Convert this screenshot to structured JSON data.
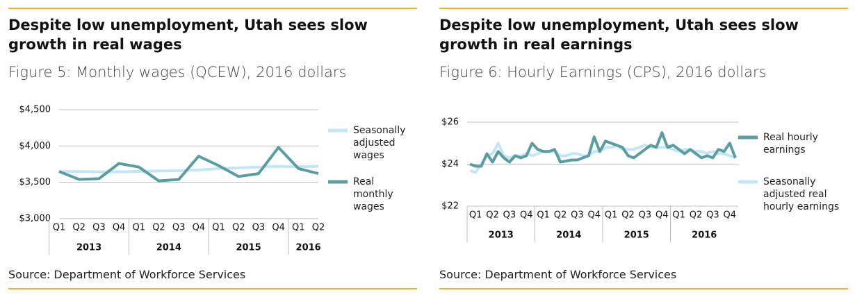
{
  "chart_data": [
    {
      "type": "line",
      "title": "Despite low unemployment, Utah sees slow growth in real wages",
      "subtitle": "Figure 5: Monthly wages (QCEW), 2016 dollars",
      "source": "Source: Department of Workforce Services",
      "categories": [
        "Q1",
        "Q2",
        "Q3",
        "Q4",
        "Q1",
        "Q2",
        "Q3",
        "Q4",
        "Q1",
        "Q2",
        "Q3",
        "Q4",
        "Q1",
        "Q2"
      ],
      "groups": [
        "2013",
        "2014",
        "2015",
        "2016"
      ],
      "ylim": [
        3000,
        4500
      ],
      "yticks": [
        {
          "value": 3000,
          "label": "$3,000"
        },
        {
          "value": 3500,
          "label": "$3,500"
        },
        {
          "value": 4000,
          "label": "$4,000"
        },
        {
          "value": 4500,
          "label": "$4,500"
        }
      ],
      "grid": true,
      "series": [
        {
          "name": "Seasonally adjusted wages",
          "color": "#c2e6f5",
          "values": [
            3650,
            3650,
            3645,
            3645,
            3650,
            3655,
            3660,
            3670,
            3690,
            3700,
            3710,
            3720,
            3715,
            3720
          ]
        },
        {
          "name": "Real monthly wages",
          "color": "#5a9da0",
          "values": [
            3650,
            3540,
            3550,
            3760,
            3710,
            3520,
            3540,
            3860,
            3730,
            3580,
            3620,
            3980,
            3690,
            3620
          ]
        }
      ]
    },
    {
      "type": "line",
      "title": "Despite low unemployment, Utah sees slow growth in real earnings",
      "subtitle": "Figure 6: Hourly Earnings (CPS), 2016 dollars",
      "source": "Source: Department of Workforce Services",
      "categories": [
        null,
        "Q1",
        null,
        null,
        "Q2",
        null,
        null,
        "Q3",
        null,
        null,
        "Q4",
        null,
        null,
        "Q1",
        null,
        null,
        "Q2",
        null,
        null,
        "Q3",
        null,
        null,
        "Q4",
        null,
        null,
        "Q1",
        null,
        null,
        "Q2",
        null,
        null,
        "Q3",
        null,
        null,
        "Q4",
        null,
        null,
        "Q1",
        null,
        null,
        "Q2",
        null,
        null,
        "Q3",
        null,
        null,
        "Q4",
        null
      ],
      "groups": [
        "2013",
        "2014",
        "2015",
        "2016"
      ],
      "ylim": [
        22,
        26
      ],
      "yticks": [
        {
          "value": 22,
          "label": "$22"
        },
        {
          "value": 24,
          "label": "$24"
        },
        {
          "value": 26,
          "label": "$26"
        }
      ],
      "grid": true,
      "series": [
        {
          "name": "Real hourly earnings",
          "color": "#5a9da0",
          "values": [
            24.0,
            23.9,
            23.9,
            24.5,
            24.1,
            24.6,
            24.3,
            24.1,
            24.4,
            24.3,
            24.4,
            25.0,
            24.7,
            24.6,
            24.6,
            24.7,
            24.1,
            24.15,
            24.2,
            24.2,
            24.3,
            24.4,
            25.3,
            24.6,
            25.1,
            25.0,
            24.9,
            24.8,
            24.4,
            24.3,
            24.5,
            24.7,
            24.9,
            24.8,
            25.5,
            24.8,
            24.9,
            24.7,
            24.5,
            24.7,
            24.5,
            24.3,
            24.4,
            24.3,
            24.7,
            24.6,
            25.0,
            24.3
          ]
        },
        {
          "name": "Seasonally adjusted real hourly earnings",
          "color": "#c2e6f5",
          "values": [
            23.7,
            23.6,
            24.0,
            24.4,
            24.5,
            25.0,
            24.4,
            24.3,
            24.4,
            24.4,
            24.5,
            24.4,
            24.5,
            24.6,
            24.6,
            24.6,
            24.4,
            24.4,
            24.5,
            24.5,
            24.4,
            24.4,
            24.6,
            24.6,
            24.8,
            24.8,
            24.9,
            24.7,
            24.7,
            24.7,
            24.8,
            24.9,
            24.8,
            24.8,
            24.8,
            24.8,
            24.7,
            24.6,
            24.7,
            24.7,
            24.6,
            24.6,
            24.5,
            24.6,
            24.5,
            24.5,
            24.4,
            24.3
          ]
        }
      ]
    }
  ]
}
